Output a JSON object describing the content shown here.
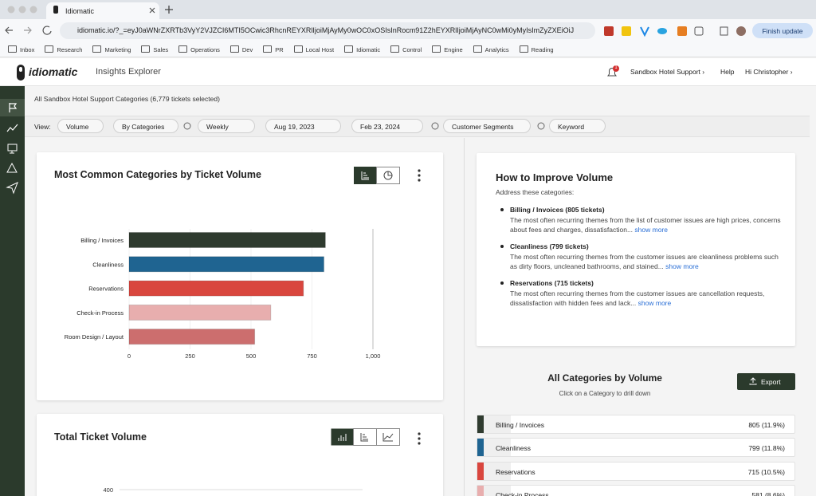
{
  "browser": {
    "tab_title": "Idiomatic",
    "url": "idiomatic.io/?_=eyJ0aWNrZXRTb3VyY2VJZCI6MTI5OCwic3RhcnREYXRlIjoiMjAyMy0wOC0xOSIsInRocm91Z2hEYXRlIjoiMjAyNC0wMi0yMyIsImZyZXEiOiJ",
    "finish_update": "Finish update",
    "bookmarks": [
      "Inbox",
      "Research",
      "Marketing",
      "Sales",
      "Operations",
      "Dev",
      "PR",
      "Local Host",
      "Idiomatic",
      "Control",
      "Engine",
      "Analytics",
      "Reading"
    ]
  },
  "header": {
    "logo": "idiomatic",
    "section": "Insights Explorer",
    "notification_count": "1",
    "org": "Sandbox Hotel Support",
    "help": "Help",
    "user": "Hi Christopher"
  },
  "selection_summary": "All Sandbox Hotel Support Categories (6,779 tickets selected)",
  "filters": {
    "label": "View:",
    "items": [
      "Volume",
      "By Categories",
      "Weekly",
      "Aug 19, 2023",
      "Feb 23, 2024",
      "Customer Segments",
      "Keyword"
    ]
  },
  "category_chart": {
    "type": "bar",
    "orientation": "horizontal",
    "title": "Most Common Categories by Ticket Volume",
    "categories": [
      "Billing / Invoices",
      "Cleanliness",
      "Reservations",
      "Check-in Process",
      "Room Design / Layout"
    ],
    "values": [
      805,
      799,
      715,
      581,
      515
    ],
    "colors": [
      "#2f3b2f",
      "#1f6491",
      "#d9463e",
      "#e8aeae",
      "#cc6e6e"
    ],
    "xlim": [
      0,
      1000
    ],
    "xticks": [
      0,
      250,
      500,
      750,
      {
        "value": 1000,
        "label": "1,000"
      }
    ],
    "grid": true
  },
  "volume_chart": {
    "type": "line",
    "title": "Total Ticket Volume",
    "ylim": [
      0,
      400
    ],
    "yticks": [
      400
    ],
    "grid": true
  },
  "improve_panel": {
    "title": "How to Improve Volume",
    "intro": "Address these categories:",
    "items": [
      {
        "heading": "Billing / Invoices (805 tickets)",
        "text": "The most often recurring themes from the list of customer issues are high prices, concerns about fees and charges, dissatisfaction...",
        "link": "show more"
      },
      {
        "heading": "Cleanliness (799 tickets)",
        "text": "The most often recurring themes from the customer issues are cleanliness problems such as dirty floors, uncleaned bathrooms, and stained...",
        "link": "show more"
      },
      {
        "heading": "Reservations (715 tickets)",
        "text": "The most often recurring themes from the customer issues are cancellation requests, dissatisfaction with hidden fees and lack...",
        "link": "show more"
      }
    ]
  },
  "category_list": {
    "title": "All Categories by Volume",
    "subtitle": "Click on a Category to drill down",
    "export": "Export",
    "rows": [
      {
        "name": "Billing / Invoices",
        "value_label": "805 (11.9%)",
        "color": "#2f3b2f"
      },
      {
        "name": "Cleanliness",
        "value_label": "799 (11.8%)",
        "color": "#1f6491"
      },
      {
        "name": "Reservations",
        "value_label": "715 (10.5%)",
        "color": "#d9463e"
      },
      {
        "name": "Check-in Process",
        "value_label": "581 (8.6%)",
        "color": "#e8aeae"
      }
    ]
  }
}
